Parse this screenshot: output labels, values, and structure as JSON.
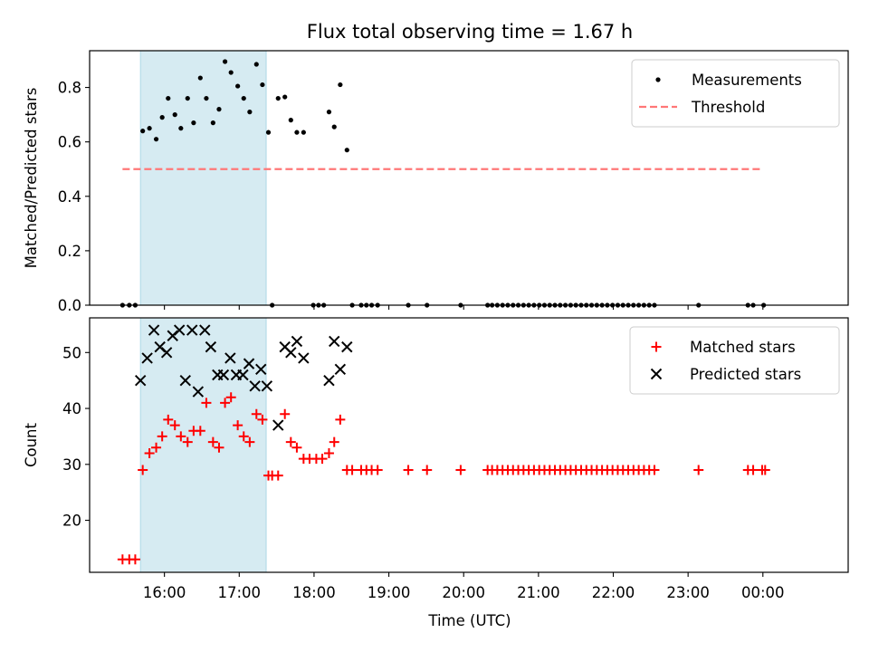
{
  "chart_data": {
    "title": "Flux total observing time = 1.67 h",
    "xlabel": "Time (UTC)",
    "x_ticks": [
      "16:00",
      "17:00",
      "18:00",
      "19:00",
      "20:00",
      "21:00",
      "22:00",
      "23:00",
      "00:00"
    ],
    "x_tick_hours": [
      16,
      17,
      18,
      19,
      20,
      21,
      22,
      23,
      24
    ],
    "xlim_hours": [
      15.0,
      25.14
    ],
    "highlight_span_hours": [
      15.68,
      17.36
    ],
    "highlight_color": "#add8e6",
    "panels": [
      {
        "type": "scatter",
        "ylabel": "Matched/Predicted stars",
        "ylim": [
          0.0,
          0.935
        ],
        "y_ticks": [
          0.0,
          0.2,
          0.4,
          0.6,
          0.8
        ],
        "y_tick_labels": [
          "0.0",
          "0.2",
          "0.4",
          "0.6",
          "0.8"
        ],
        "legend_position": "upper right",
        "threshold": {
          "name": "Threshold",
          "y": 0.5,
          "x_range_hours": [
            15.44,
            24.0
          ],
          "color": "#ff7777"
        },
        "series": [
          {
            "name": "Measurements",
            "marker": "dot",
            "color": "#000000",
            "points": [
              [
                15.44,
                0.0
              ],
              [
                15.53,
                0.0
              ],
              [
                15.61,
                0.0
              ],
              [
                15.71,
                0.64
              ],
              [
                15.8,
                0.65
              ],
              [
                15.89,
                0.61
              ],
              [
                15.97,
                0.69
              ],
              [
                16.05,
                0.76
              ],
              [
                16.14,
                0.7
              ],
              [
                16.22,
                0.65
              ],
              [
                16.31,
                0.76
              ],
              [
                16.39,
                0.67
              ],
              [
                16.48,
                0.835
              ],
              [
                16.56,
                0.76
              ],
              [
                16.65,
                0.67
              ],
              [
                16.73,
                0.72
              ],
              [
                16.81,
                0.895
              ],
              [
                16.89,
                0.855
              ],
              [
                16.98,
                0.805
              ],
              [
                17.06,
                0.76
              ],
              [
                17.14,
                0.71
              ],
              [
                17.23,
                0.885
              ],
              [
                17.31,
                0.81
              ],
              [
                17.39,
                0.635
              ],
              [
                17.44,
                0.0
              ],
              [
                17.52,
                0.76
              ],
              [
                17.61,
                0.765
              ],
              [
                17.69,
                0.68
              ],
              [
                17.77,
                0.635
              ],
              [
                17.86,
                0.635
              ],
              [
                17.99,
                0.0
              ],
              [
                18.06,
                0.0
              ],
              [
                18.13,
                0.0
              ],
              [
                18.2,
                0.71
              ],
              [
                18.27,
                0.655
              ],
              [
                18.35,
                0.81
              ],
              [
                18.44,
                0.57
              ],
              [
                18.51,
                0.0
              ],
              [
                18.63,
                0.0
              ],
              [
                18.7,
                0.0
              ],
              [
                18.77,
                0.0
              ],
              [
                18.85,
                0.0
              ],
              [
                19.26,
                0.0
              ],
              [
                19.51,
                0.0
              ],
              [
                19.96,
                0.0
              ],
              [
                20.32,
                0.0
              ],
              [
                20.38,
                0.0
              ],
              [
                20.45,
                0.0
              ],
              [
                20.52,
                0.0
              ],
              [
                20.59,
                0.0
              ],
              [
                20.66,
                0.0
              ],
              [
                20.73,
                0.0
              ],
              [
                20.8,
                0.0
              ],
              [
                20.87,
                0.0
              ],
              [
                20.94,
                0.0
              ],
              [
                21.01,
                0.0
              ],
              [
                21.08,
                0.0
              ],
              [
                21.15,
                0.0
              ],
              [
                21.22,
                0.0
              ],
              [
                21.29,
                0.0
              ],
              [
                21.36,
                0.0
              ],
              [
                21.43,
                0.0
              ],
              [
                21.5,
                0.0
              ],
              [
                21.57,
                0.0
              ],
              [
                21.64,
                0.0
              ],
              [
                21.71,
                0.0
              ],
              [
                21.78,
                0.0
              ],
              [
                21.85,
                0.0
              ],
              [
                21.92,
                0.0
              ],
              [
                21.99,
                0.0
              ],
              [
                22.06,
                0.0
              ],
              [
                22.13,
                0.0
              ],
              [
                22.2,
                0.0
              ],
              [
                22.27,
                0.0
              ],
              [
                22.34,
                0.0
              ],
              [
                22.41,
                0.0
              ],
              [
                22.48,
                0.0
              ],
              [
                22.55,
                0.0
              ],
              [
                23.14,
                0.0
              ],
              [
                23.8,
                0.0
              ],
              [
                23.87,
                0.0
              ],
              [
                24.01,
                0.0
              ]
            ]
          }
        ]
      },
      {
        "type": "scatter",
        "ylabel": "Count",
        "ylim": [
          10.7,
          56.2
        ],
        "y_ticks": [
          20,
          30,
          40,
          50
        ],
        "y_tick_labels": [
          "20",
          "30",
          "40",
          "50"
        ],
        "legend_position": "upper right",
        "series": [
          {
            "name": "Matched stars",
            "marker": "plus",
            "color": "#ff0000",
            "points": [
              [
                15.44,
                13
              ],
              [
                15.53,
                13
              ],
              [
                15.61,
                13
              ],
              [
                15.71,
                29
              ],
              [
                15.8,
                32
              ],
              [
                15.89,
                33
              ],
              [
                15.97,
                35
              ],
              [
                16.05,
                38
              ],
              [
                16.14,
                37
              ],
              [
                16.22,
                35
              ],
              [
                16.31,
                34
              ],
              [
                16.39,
                36
              ],
              [
                16.48,
                36
              ],
              [
                16.56,
                41
              ],
              [
                16.65,
                34
              ],
              [
                16.73,
                33
              ],
              [
                16.81,
                41
              ],
              [
                16.89,
                42
              ],
              [
                16.98,
                37
              ],
              [
                17.06,
                35
              ],
              [
                17.14,
                34
              ],
              [
                17.23,
                39
              ],
              [
                17.31,
                38
              ],
              [
                17.39,
                28
              ],
              [
                17.44,
                28
              ],
              [
                17.52,
                28
              ],
              [
                17.61,
                39
              ],
              [
                17.69,
                34
              ],
              [
                17.77,
                33
              ],
              [
                17.86,
                31
              ],
              [
                17.94,
                31
              ],
              [
                18.03,
                31
              ],
              [
                18.11,
                31
              ],
              [
                18.2,
                32
              ],
              [
                18.27,
                34
              ],
              [
                18.35,
                38
              ],
              [
                18.44,
                29
              ],
              [
                18.51,
                29
              ],
              [
                18.63,
                29
              ],
              [
                18.7,
                29
              ],
              [
                18.77,
                29
              ],
              [
                18.85,
                29
              ],
              [
                19.26,
                29
              ],
              [
                19.51,
                29
              ],
              [
                19.96,
                29
              ],
              [
                20.32,
                29
              ],
              [
                20.38,
                29
              ],
              [
                20.45,
                29
              ],
              [
                20.52,
                29
              ],
              [
                20.59,
                29
              ],
              [
                20.66,
                29
              ],
              [
                20.73,
                29
              ],
              [
                20.8,
                29
              ],
              [
                20.87,
                29
              ],
              [
                20.94,
                29
              ],
              [
                21.01,
                29
              ],
              [
                21.08,
                29
              ],
              [
                21.15,
                29
              ],
              [
                21.22,
                29
              ],
              [
                21.29,
                29
              ],
              [
                21.36,
                29
              ],
              [
                21.43,
                29
              ],
              [
                21.5,
                29
              ],
              [
                21.57,
                29
              ],
              [
                21.64,
                29
              ],
              [
                21.71,
                29
              ],
              [
                21.78,
                29
              ],
              [
                21.85,
                29
              ],
              [
                21.92,
                29
              ],
              [
                21.99,
                29
              ],
              [
                22.06,
                29
              ],
              [
                22.13,
                29
              ],
              [
                22.2,
                29
              ],
              [
                22.27,
                29
              ],
              [
                22.34,
                29
              ],
              [
                22.41,
                29
              ],
              [
                22.48,
                29
              ],
              [
                22.55,
                29
              ],
              [
                23.14,
                29
              ],
              [
                23.8,
                29
              ],
              [
                23.87,
                29
              ],
              [
                23.99,
                29
              ],
              [
                24.03,
                29
              ]
            ]
          },
          {
            "name": "Predicted stars",
            "marker": "cross",
            "color": "#000000",
            "points": [
              [
                15.68,
                45
              ],
              [
                15.77,
                49
              ],
              [
                15.86,
                54
              ],
              [
                15.94,
                51
              ],
              [
                16.03,
                50
              ],
              [
                16.11,
                53
              ],
              [
                16.2,
                54
              ],
              [
                16.28,
                45
              ],
              [
                16.37,
                54
              ],
              [
                16.45,
                43
              ],
              [
                16.54,
                54
              ],
              [
                16.62,
                51
              ],
              [
                16.71,
                46
              ],
              [
                16.79,
                46
              ],
              [
                16.88,
                49
              ],
              [
                16.96,
                46
              ],
              [
                17.05,
                46
              ],
              [
                17.13,
                48
              ],
              [
                17.21,
                44
              ],
              [
                17.29,
                47
              ],
              [
                17.37,
                44
              ],
              [
                17.52,
                37
              ],
              [
                17.61,
                51
              ],
              [
                17.69,
                50
              ],
              [
                17.77,
                52
              ],
              [
                17.86,
                49
              ],
              [
                18.2,
                45
              ],
              [
                18.27,
                52
              ],
              [
                18.35,
                47
              ],
              [
                18.44,
                51
              ]
            ]
          }
        ]
      }
    ]
  }
}
